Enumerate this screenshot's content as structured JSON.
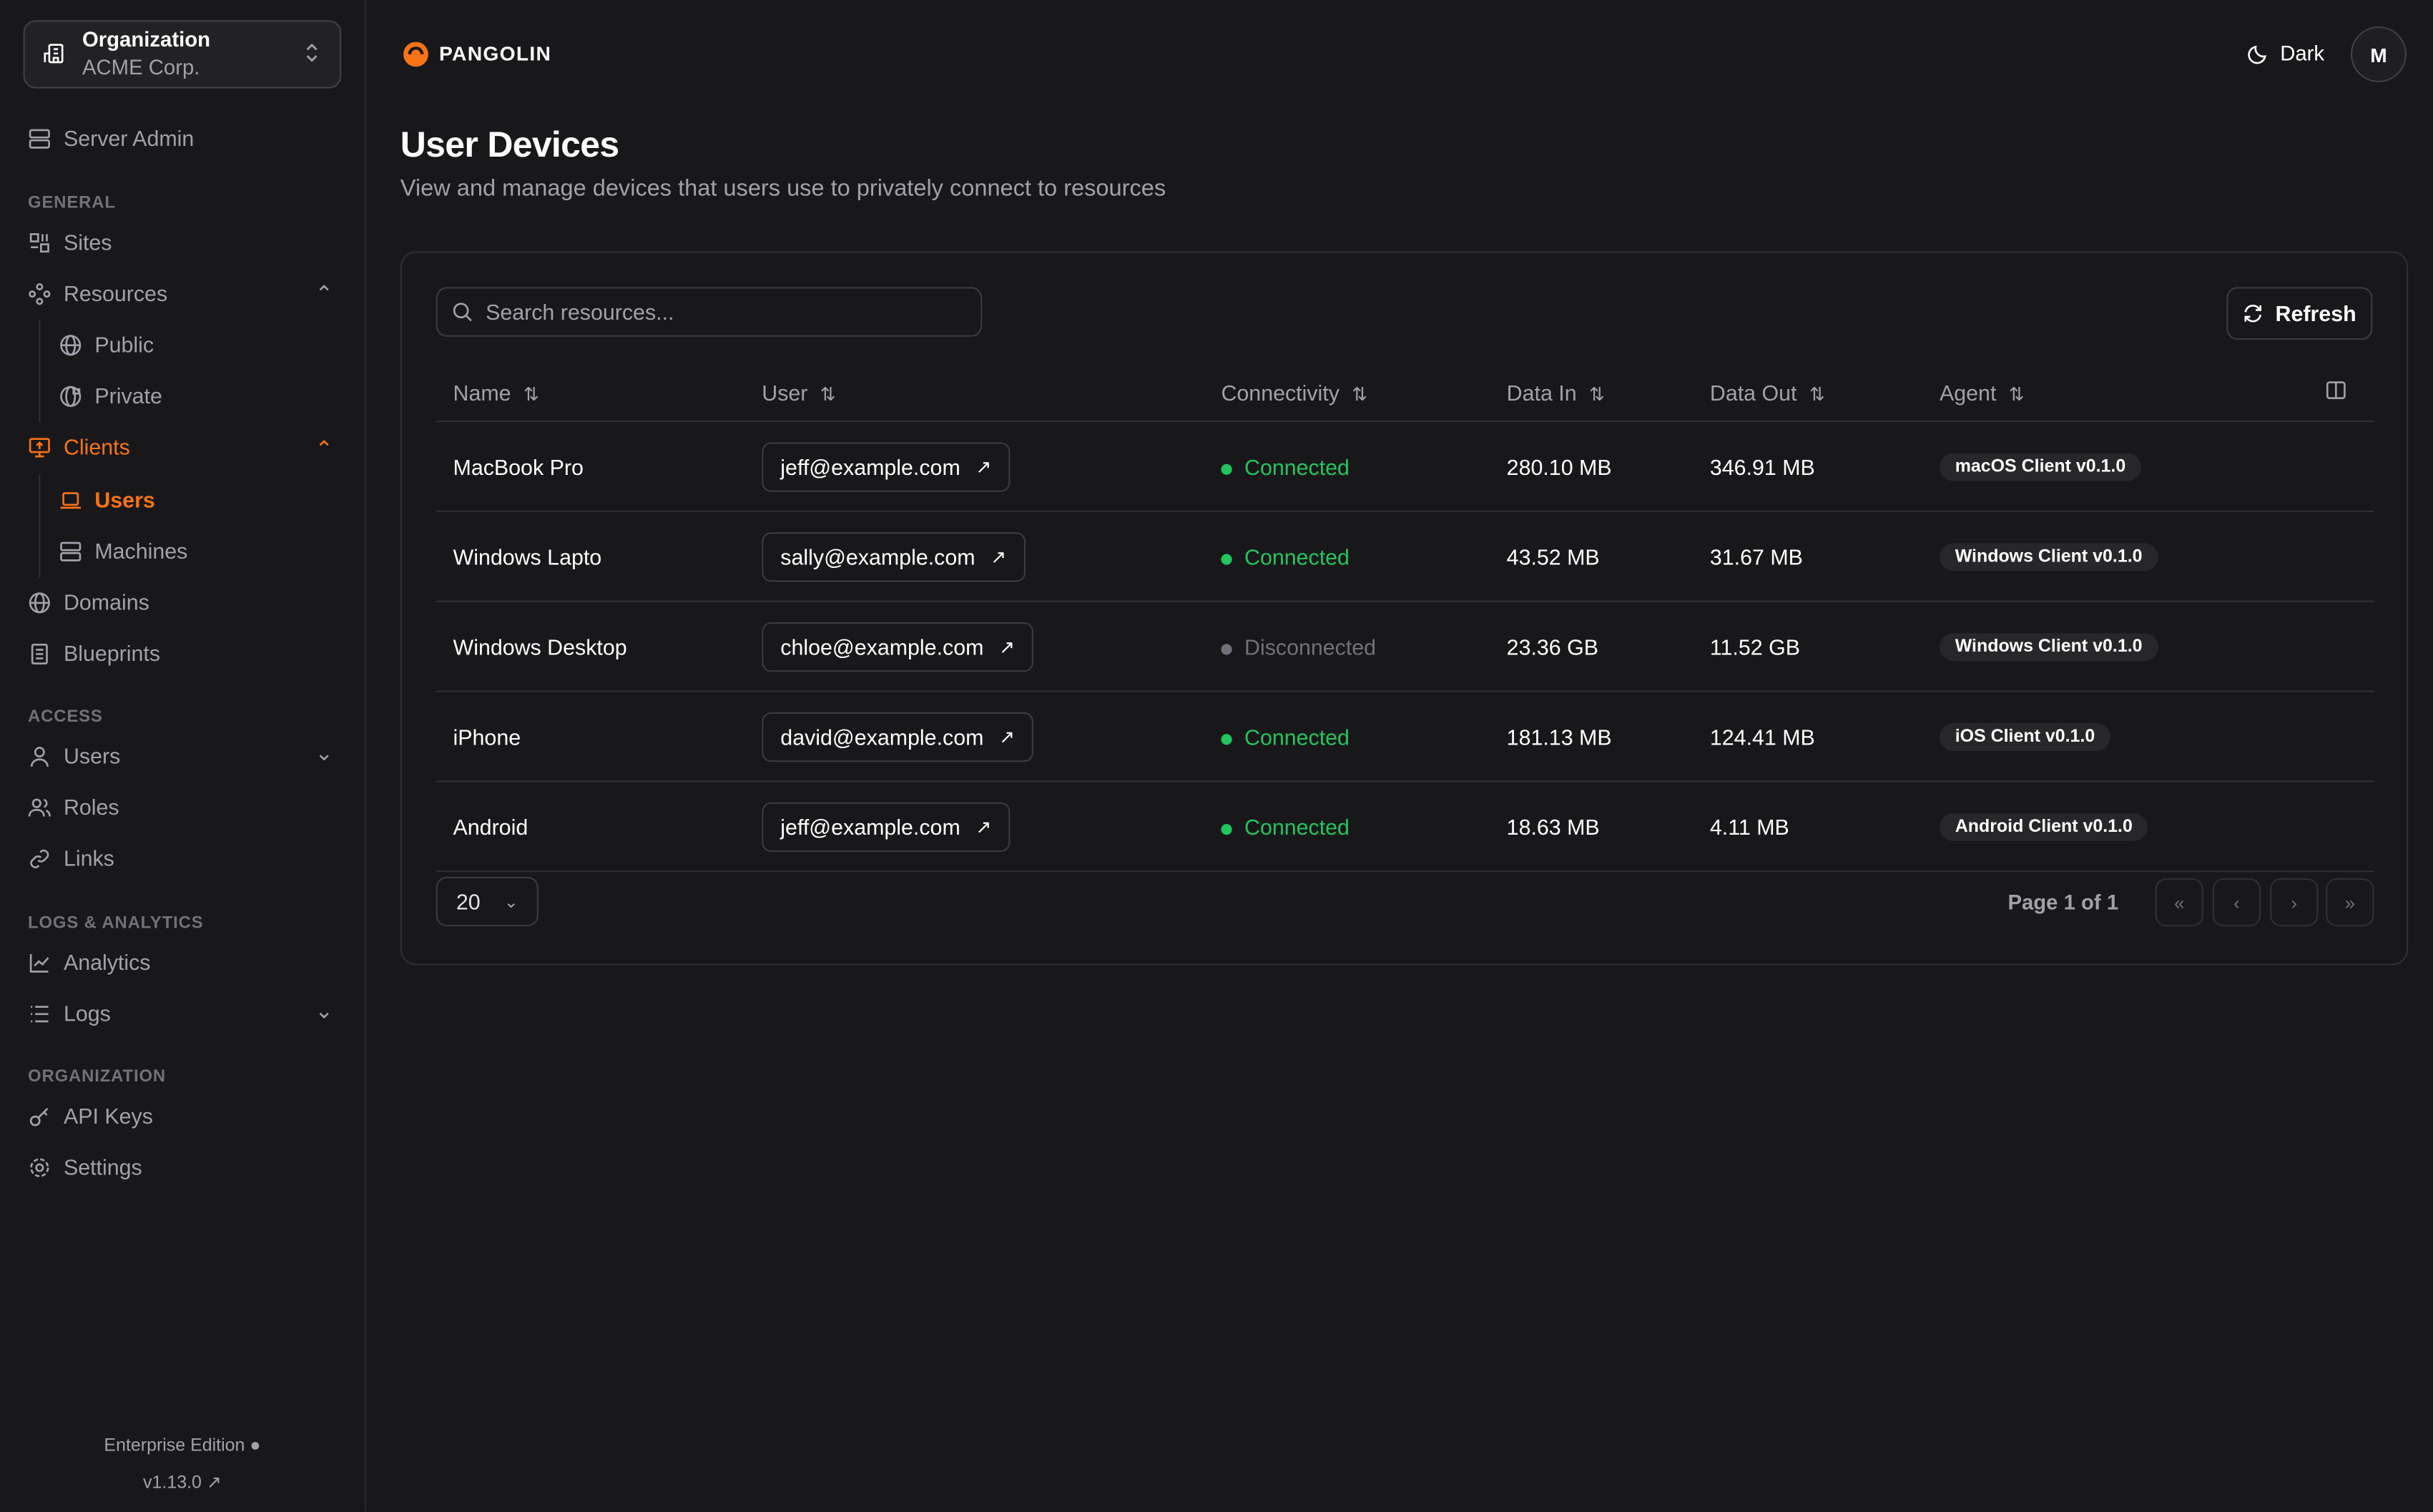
{
  "org": {
    "label": "Organization",
    "name": "ACME Corp."
  },
  "sidebar": {
    "server_admin": "Server Admin",
    "sections": {
      "general": "GENERAL",
      "access": "ACCESS",
      "logs": "LOGS & ANALYTICS",
      "organization": "ORGANIZATION"
    },
    "items": {
      "sites": "Sites",
      "resources": "Resources",
      "public": "Public",
      "private": "Private",
      "clients": "Clients",
      "users": "Users",
      "machines": "Machines",
      "domains": "Domains",
      "blueprints": "Blueprints",
      "access_users": "Users",
      "roles": "Roles",
      "links": "Links",
      "analytics": "Analytics",
      "logs": "Logs",
      "api_keys": "API Keys",
      "settings": "Settings"
    },
    "footer": {
      "edition": "Enterprise Edition",
      "version": "v1.13.0"
    }
  },
  "header": {
    "brand": "PANGOLIN",
    "theme": "Dark",
    "avatar": "M"
  },
  "page": {
    "title": "User Devices",
    "subtitle": "View and manage devices that users use to privately connect to resources"
  },
  "toolbar": {
    "search_placeholder": "Search resources...",
    "refresh": "Refresh"
  },
  "table": {
    "columns": [
      "Name",
      "User",
      "Connectivity",
      "Data In",
      "Data Out",
      "Agent"
    ],
    "rows": [
      {
        "name": "MacBook Pro",
        "user": "jeff@example.com",
        "status": "Connected",
        "in": "280.10 MB",
        "out": "346.91 MB",
        "agent": "macOS Client v0.1.0"
      },
      {
        "name": "Windows Lapto",
        "user": "sally@example.com",
        "status": "Connected",
        "in": "43.52 MB",
        "out": "31.67 MB",
        "agent": "Windows Client v0.1.0"
      },
      {
        "name": "Windows Desktop",
        "user": "chloe@example.com",
        "status": "Disconnected",
        "in": "23.36 GB",
        "out": "11.52 GB",
        "agent": "Windows Client v0.1.0"
      },
      {
        "name": "iPhone",
        "user": "david@example.com",
        "status": "Connected",
        "in": "181.13 MB",
        "out": "124.41 MB",
        "agent": "iOS Client v0.1.0"
      },
      {
        "name": "Android",
        "user": "jeff@example.com",
        "status": "Connected",
        "in": "18.63 MB",
        "out": "4.11 MB",
        "agent": "Android Client v0.1.0"
      }
    ]
  },
  "pagination": {
    "page_size": "20",
    "page_info": "Page 1 of 1"
  },
  "colors": {
    "accent": "#f97316",
    "connected": "#22c55e",
    "disconnected": "#71717a"
  }
}
